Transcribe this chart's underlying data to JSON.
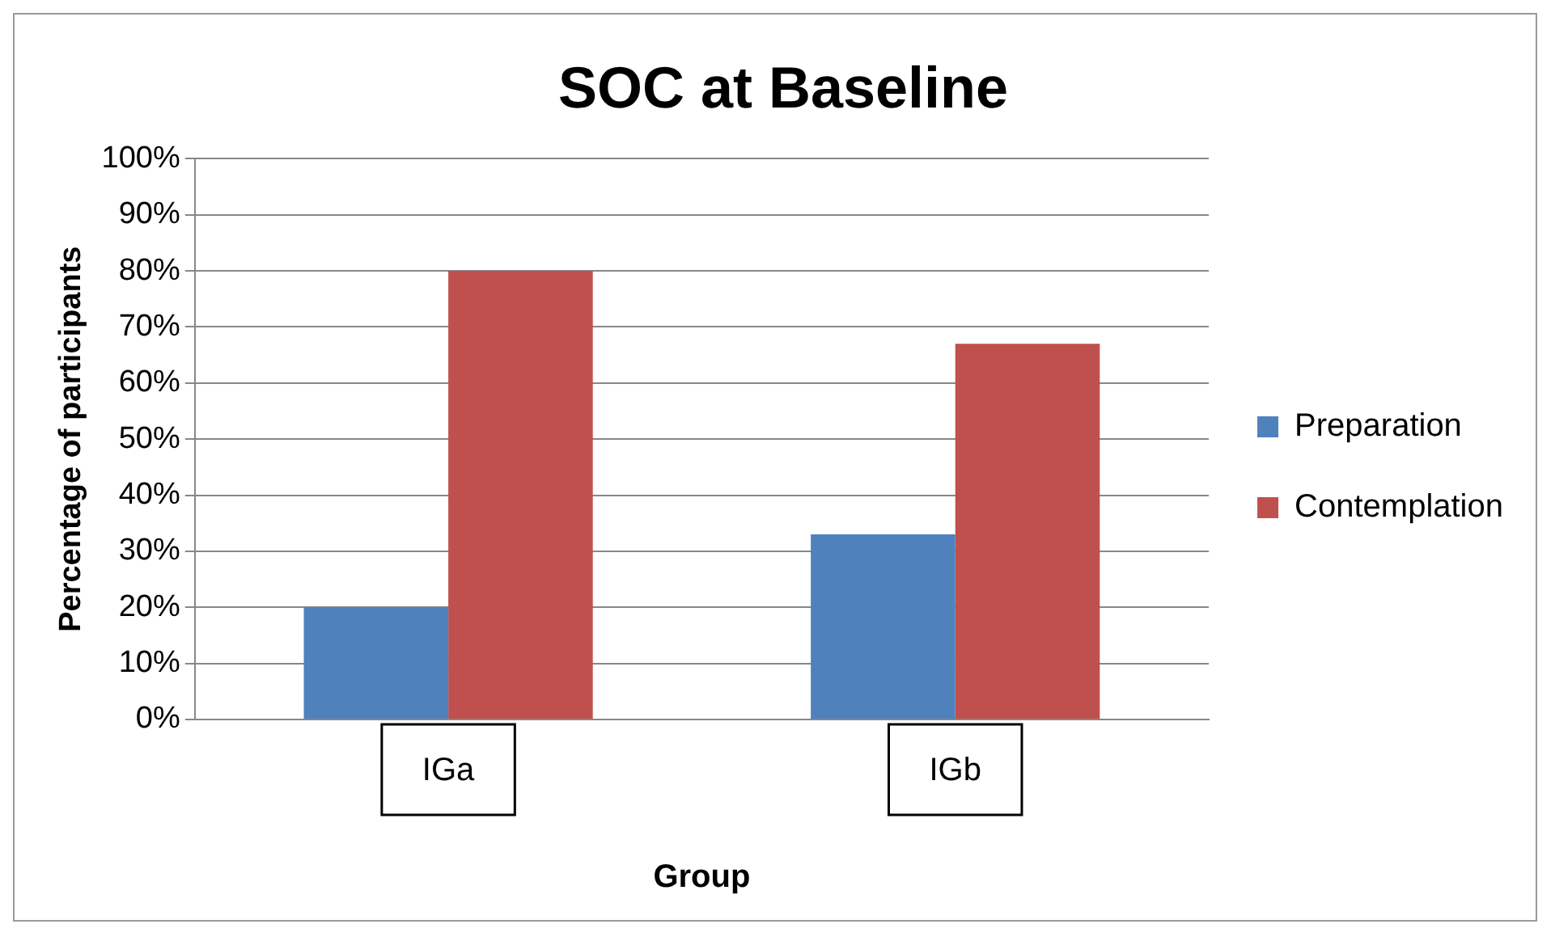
{
  "chart_data": {
    "type": "bar",
    "title": "SOC at Baseline",
    "xlabel": "Group",
    "ylabel": "Percentage of participants",
    "categories": [
      "IGa",
      "IGb"
    ],
    "series": [
      {
        "name": "Preparation",
        "color": "#4f81bd",
        "values": [
          20,
          33
        ]
      },
      {
        "name": "Contemplation",
        "color": "#c0504d",
        "values": [
          80,
          67
        ]
      }
    ],
    "ylim": [
      0,
      100
    ],
    "yticks": [
      {
        "value": 0,
        "label": "0%"
      },
      {
        "value": 10,
        "label": "10%"
      },
      {
        "value": 20,
        "label": "20%"
      },
      {
        "value": 30,
        "label": "30%"
      },
      {
        "value": 40,
        "label": "40%"
      },
      {
        "value": 50,
        "label": "50%"
      },
      {
        "value": 60,
        "label": "60%"
      },
      {
        "value": 70,
        "label": "70%"
      },
      {
        "value": 80,
        "label": "80%"
      },
      {
        "value": 90,
        "label": "90%"
      },
      {
        "value": 100,
        "label": "100%"
      }
    ],
    "grid": "y",
    "legend": "right"
  }
}
